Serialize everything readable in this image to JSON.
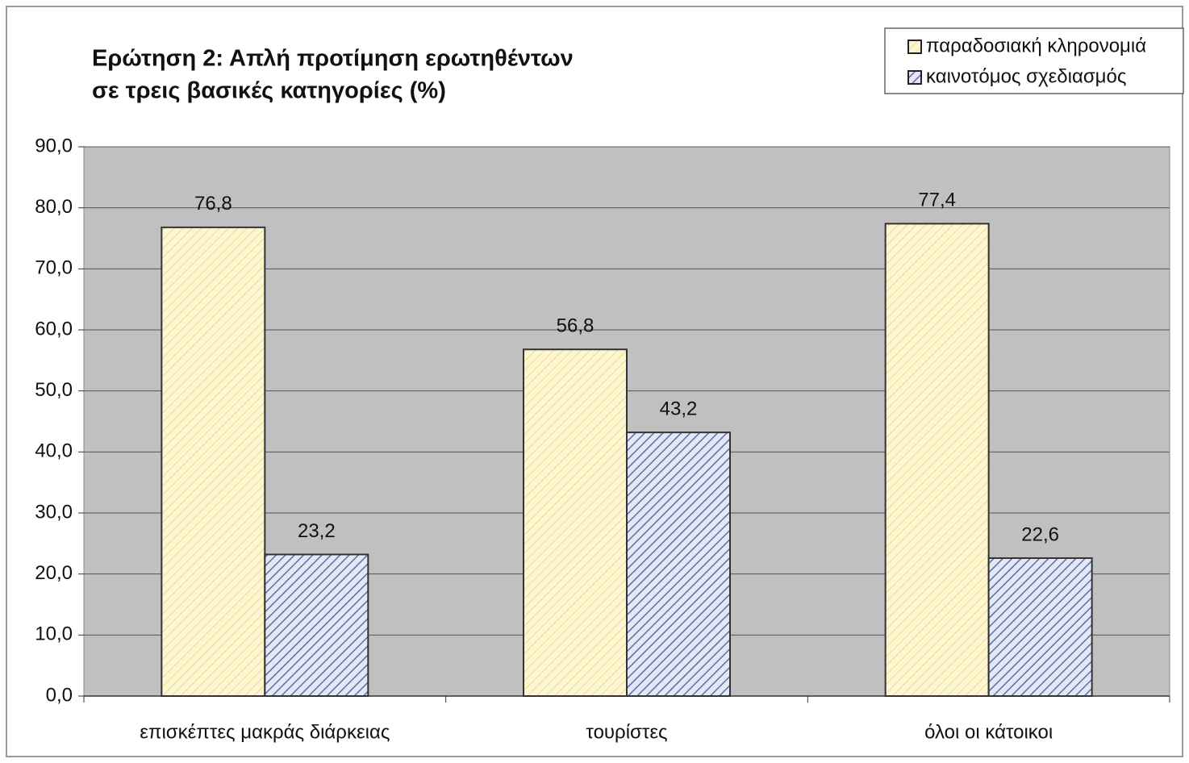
{
  "chart_data": {
    "type": "bar",
    "title": [
      "Ερώτηση 2: Απλή προτίμηση ερωτηθέντων",
      "σε τρεις βασικές κατηγορίες (%)"
    ],
    "categories": [
      "επισκέπτες μακράς διάρκειας",
      "τουρίστες",
      "όλοι οι κάτοικοι"
    ],
    "series": [
      {
        "name": "παραδοσιακή κληρονομιά",
        "color": "#fdf6cf",
        "hatch": "#e8d9a0",
        "values": [
          76.8,
          56.8,
          77.4
        ],
        "value_labels": [
          "76,8",
          "56,8",
          "77,4"
        ]
      },
      {
        "name": "καινοτόμος σχεδιασμός",
        "color": "#e4e8f4",
        "hatch": "#5a6ea8",
        "values": [
          23.2,
          43.2,
          22.6
        ],
        "value_labels": [
          "23,2",
          "43,2",
          "22,6"
        ]
      }
    ],
    "ylim": [
      0,
      90
    ],
    "yticks": [
      {
        "value": 0,
        "label": "0,0"
      },
      {
        "value": 10,
        "label": "10,0"
      },
      {
        "value": 20,
        "label": "20,0"
      },
      {
        "value": 30,
        "label": "30,0"
      },
      {
        "value": 40,
        "label": "40,0"
      },
      {
        "value": 50,
        "label": "50,0"
      },
      {
        "value": 60,
        "label": "60,0"
      },
      {
        "value": 70,
        "label": "70,0"
      },
      {
        "value": 80,
        "label": "80,0"
      },
      {
        "value": 90,
        "label": "90,0"
      }
    ],
    "grid": true,
    "legend": "top-right"
  }
}
